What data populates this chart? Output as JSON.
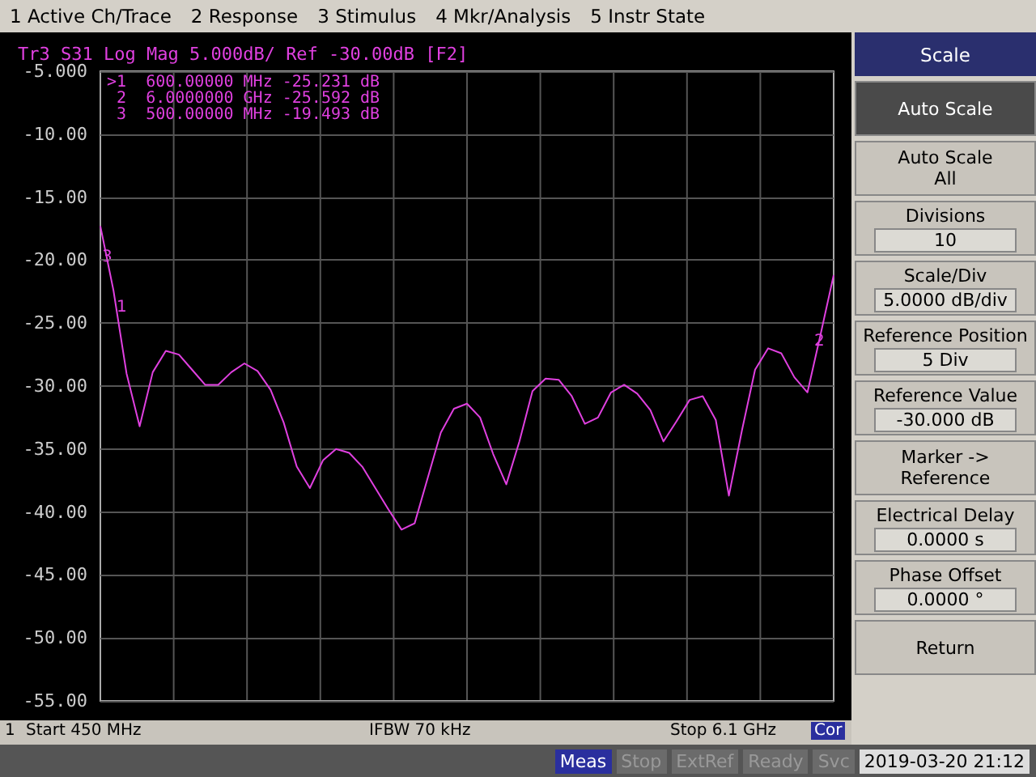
{
  "chart_data": [
    {
      "type": "line",
      "title": "Tr3 S31 Log Mag 5.000dB/ Ref -30.00dB [F2]",
      "categories": [
        null,
        null,
        null,
        null,
        null,
        null,
        null,
        null,
        null,
        null,
        null,
        null,
        null,
        null,
        null,
        null,
        null,
        null,
        null,
        null,
        null,
        null,
        null,
        null,
        null,
        null,
        null,
        null,
        null,
        null,
        null,
        null,
        null,
        null,
        null,
        null,
        null,
        null,
        null,
        null,
        null,
        null,
        null,
        null,
        null,
        null,
        null,
        null,
        null,
        null,
        null,
        null,
        null,
        null,
        null,
        null,
        null
      ],
      "series": [
        {
          "color": "#e040e0",
          "values": [
            -17.3,
            -22.4,
            -29.0,
            -33.2,
            -28.9,
            -27.2,
            -27.5,
            -28.7,
            -29.9,
            -29.9,
            -28.9,
            -28.2,
            -28.8,
            -30.3,
            -32.9,
            -36.4,
            -38.1,
            -35.9,
            -35.0,
            -35.3,
            -36.4,
            -38.1,
            -39.8,
            -41.4,
            -40.9,
            -37.3,
            -33.7,
            -31.8,
            -31.4,
            -32.5,
            -35.4,
            -37.8,
            -34.4,
            -30.4,
            -29.4,
            -29.5,
            -30.8,
            -33.0,
            -32.5,
            -30.5,
            -29.9,
            -30.6,
            -31.9,
            -34.4,
            -32.8,
            -31.1,
            -30.8,
            -32.7,
            -38.7,
            -33.5,
            -28.7,
            -27.0,
            -27.4,
            -29.3,
            -30.5,
            -25.9,
            -21.2
          ]
        }
      ],
      "ylim": [
        -55,
        -5
      ],
      "yticks": [
        {
          "value": -55,
          "label": "-55.00"
        },
        {
          "value": -50,
          "label": "-50.00"
        },
        {
          "value": -45,
          "label": "-45.00"
        },
        {
          "value": -40,
          "label": "-40.00"
        },
        {
          "value": -35,
          "label": "-35.00"
        },
        {
          "value": -30,
          "label": "-30.00"
        },
        {
          "value": -25,
          "label": "-25.00"
        },
        {
          "value": -20,
          "label": "-20.00"
        },
        {
          "value": -15,
          "label": "-15.00"
        },
        {
          "value": -10,
          "label": "-10.00"
        },
        {
          "value": -5,
          "label": "-5.000"
        }
      ],
      "tick_labels": "y",
      "grid": true,
      "annotations": [
        ">1  600.00000 MHz -25.231 dB",
        " 2  6.0000000 GHz -25.592 dB",
        " 3  500.00000 MHz -19.493 dB",
        "3",
        "1",
        "2",
        "1",
        "Start 450 MHz",
        "IFBW 70 kHz",
        "Stop 6.1 GHz",
        "Cor"
      ]
    },
    {
      "type": "other",
      "annotations": [
        "1 Active Ch/Trace",
        "2 Response",
        "3 Stimulus",
        "4 Mkr/Analysis",
        "5 Instr State",
        "Scale",
        "Auto Scale",
        "Auto Scale All",
        "Divisions",
        "10",
        "Scale/Div",
        "5.0000 dB/div",
        "Reference Position",
        "5 Div",
        "Reference Value",
        "-30.000 dB",
        "Marker -> Reference",
        "Electrical Delay",
        "0.0000 s",
        "Phase Offset",
        "0.0000 °",
        "Return",
        "Meas",
        "Stop",
        "ExtRef",
        "Ready",
        "Svc",
        "2019-03-20 21:12"
      ]
    }
  ]
}
